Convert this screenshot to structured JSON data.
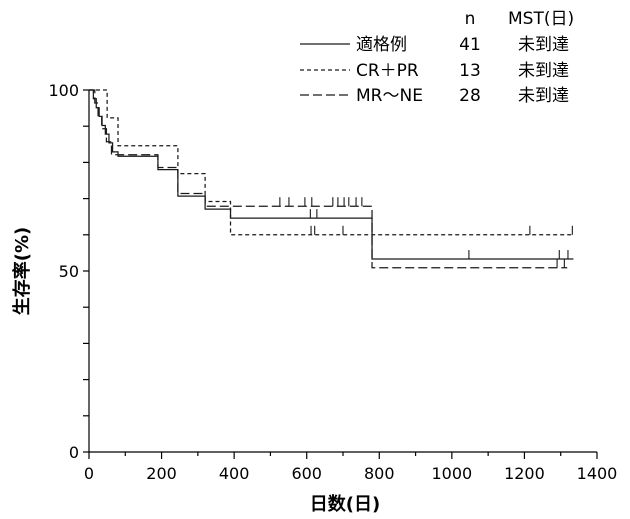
{
  "chart_data": {
    "type": "line",
    "step": true,
    "xlabel": "日数(日)",
    "ylabel": "生存率(%)",
    "xlim": [
      0,
      1400
    ],
    "ylim": [
      0,
      100
    ],
    "xticks": [
      0,
      200,
      400,
      600,
      800,
      1000,
      1200,
      1400
    ],
    "yticks": [
      0,
      50,
      100
    ],
    "grid": false,
    "legend": {
      "placement": "top-right",
      "header_n": "n",
      "header_mst": "MST(日)"
    },
    "series": [
      {
        "name": "適格例",
        "n": "41",
        "mst": "未到達",
        "x": [
          0,
          12,
          20,
          28,
          36,
          45,
          55,
          65,
          80,
          190,
          245,
          320,
          390,
          780,
          1335
        ],
        "y": [
          100,
          97.6,
          95.1,
          92.7,
          90.2,
          87.8,
          85.4,
          82.9,
          81.7,
          78.0,
          70.7,
          67.1,
          64.6,
          53.3,
          53.3
        ],
        "censored_x": [
          610,
          628,
          1047,
          1296,
          1320
        ]
      },
      {
        "name": "CR＋PR",
        "n": "13",
        "mst": "未到達",
        "x": [
          0,
          50,
          80,
          245,
          320,
          390,
          1332
        ],
        "y": [
          100,
          92.3,
          84.6,
          76.9,
          69.2,
          60.0,
          60.0
        ],
        "censored_x": [
          612,
          622,
          700,
          1215,
          1332
        ]
      },
      {
        "name": "MR〜NE",
        "n": "28",
        "mst": "未到達",
        "x": [
          0,
          16,
          25,
          35,
          48,
          62,
          190,
          245,
          320,
          780,
          1318
        ],
        "y": [
          100,
          96.4,
          92.9,
          89.3,
          85.7,
          82.1,
          78.6,
          71.4,
          67.9,
          50.9,
          50.9
        ],
        "censored_x": [
          526,
          551,
          595,
          614,
          672,
          686,
          703,
          716,
          736,
          752,
          1290,
          1310
        ]
      }
    ]
  }
}
